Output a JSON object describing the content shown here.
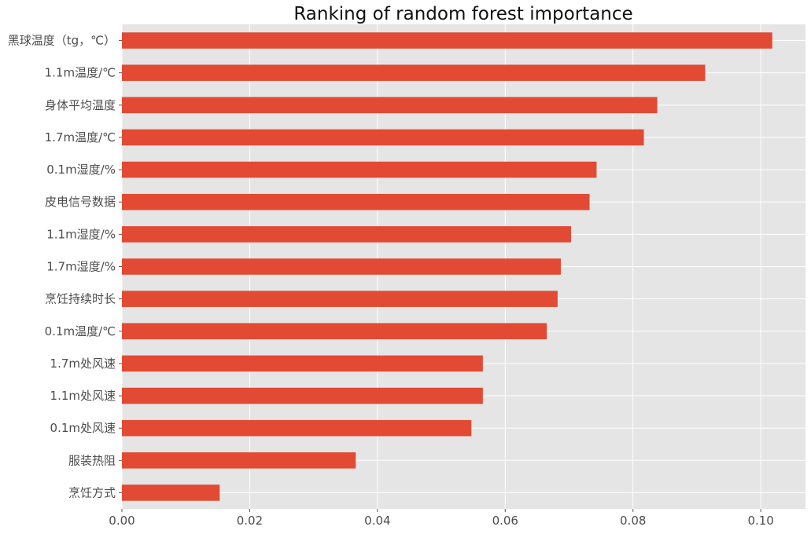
{
  "chart_data": {
    "type": "bar",
    "orientation": "horizontal",
    "title": "Ranking of random forest importance",
    "xlabel": "",
    "ylabel": "",
    "xlim": [
      0.0,
      0.107
    ],
    "grid": true,
    "legend": "none",
    "colors": {
      "bar": "#E24A33",
      "plot_background": "#E5E5E5",
      "grid": "#FFFFFF",
      "page_background": "#FFFFFF"
    },
    "categories": [
      "黑球温度（tg，℃）",
      "1.1m温度/℃",
      "身体平均温度",
      "1.7m温度/℃",
      "0.1m湿度/%",
      "皮电信号数据",
      "1.1m湿度/%",
      "1.7m湿度/%",
      "烹饪持续时长",
      "0.1m温度/℃",
      "1.7m处风速",
      "1.1m处风速",
      "0.1m处风速",
      "服装热阻",
      "烹饪方式"
    ],
    "values": [
      0.1018,
      0.0913,
      0.0838,
      0.0817,
      0.0743,
      0.0732,
      0.0703,
      0.0687,
      0.0682,
      0.0665,
      0.0565,
      0.0565,
      0.0547,
      0.0366,
      0.0153
    ],
    "xticks": [
      0.0,
      0.02,
      0.04,
      0.06,
      0.08,
      0.1
    ],
    "xtick_labels": [
      "0.00",
      "0.02",
      "0.04",
      "0.06",
      "0.08",
      "0.10"
    ]
  }
}
